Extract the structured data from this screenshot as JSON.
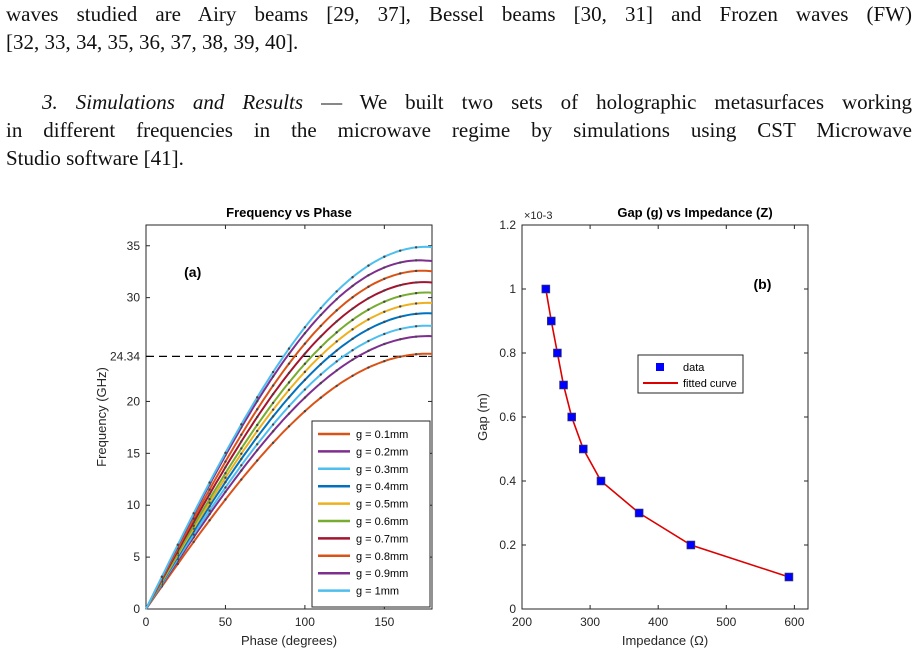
{
  "text": {
    "p1_line1": "waves studied are Airy beams [29, 37], Bessel beams [30, 31] and Frozen waves (FW)",
    "p1_line2": "[32, 33, 34, 35, 36, 37, 38, 39, 40].",
    "p2_heading": "3. Simulations and Results",
    "p2_line1_rest": " — We built two sets of holographic metasurfaces working",
    "p2_line2": "in different frequencies in the microwave regime by simulations using CST Microwave",
    "p2_line3": "Studio software [41]."
  },
  "chart_data": [
    {
      "type": "line",
      "title": "Frequency vs Phase",
      "panel_label": "(a)",
      "xlabel": "Phase (degrees)",
      "ylabel": "Frequency (GHz)",
      "xlim": [
        0,
        180
      ],
      "ylim": [
        0,
        37
      ],
      "xticks": [
        "0",
        "50",
        "100",
        "150"
      ],
      "yticks": [
        "0",
        "5",
        "10",
        "15",
        "20",
        "24.34",
        "30",
        "35"
      ],
      "reference_line": {
        "y": 24.34,
        "label": "24.34",
        "style": "dashed"
      },
      "legend_position": "bottom-right",
      "series": [
        {
          "name": "g = 0.1mm",
          "color": "#d95319",
          "fmax": 24.6,
          "phase_at_max": 178
        },
        {
          "name": "g = 0.2mm",
          "color": "#7e2f8e",
          "fmax": 26.3,
          "phase_at_max": 178
        },
        {
          "name": "g = 0.3mm",
          "color": "#4dbeee",
          "fmax": 27.3,
          "phase_at_max": 178
        },
        {
          "name": "g = 0.4mm",
          "color": "#0072bd",
          "fmax": 28.5,
          "phase_at_max": 178
        },
        {
          "name": "g = 0.5mm",
          "color": "#edb120",
          "fmax": 29.5,
          "phase_at_max": 178
        },
        {
          "name": "g = 0.6mm",
          "color": "#77ac30",
          "fmax": 30.5,
          "phase_at_max": 178
        },
        {
          "name": "g = 0.7mm",
          "color": "#a2142f",
          "fmax": 31.5,
          "phase_at_max": 176
        },
        {
          "name": "g = 0.8mm",
          "color": "#d95319",
          "fmax": 32.6,
          "phase_at_max": 175
        },
        {
          "name": "g = 0.9mm",
          "color": "#7e2f8e",
          "fmax": 33.6,
          "phase_at_max": 173
        },
        {
          "name": "g = 1mm",
          "color": "#4dbeee",
          "fmax": 34.9,
          "phase_at_max": 177
        }
      ]
    },
    {
      "type": "scatter",
      "title": "Gap (g) vs Impedance (Z)",
      "panel_label": "(b)",
      "xlabel": "Impedance (Ω)",
      "ylabel": "Gap (m)",
      "y_multiplier": "×10-3",
      "xlim": [
        200,
        620
      ],
      "ylim": [
        0,
        1.2
      ],
      "xticks": [
        "200",
        "300",
        "400",
        "500",
        "600"
      ],
      "yticks": [
        "0",
        "0.2",
        "0.4",
        "0.6",
        "0.8",
        "1",
        "1.2"
      ],
      "legend_position": "top-right",
      "series": [
        {
          "name": "data",
          "color": "#0000ff",
          "marker": "square",
          "x": [
            235,
            243,
            252,
            261,
            273,
            290,
            316,
            372,
            448,
            592
          ],
          "y": [
            1.0,
            0.9,
            0.8,
            0.7,
            0.6,
            0.5,
            0.4,
            0.3,
            0.2,
            0.1
          ]
        },
        {
          "name": "fitted curve",
          "color": "#dd0000",
          "marker": "line",
          "x": [
            235,
            243,
            252,
            261,
            273,
            290,
            316,
            372,
            448,
            592
          ],
          "y": [
            1.0,
            0.9,
            0.8,
            0.7,
            0.6,
            0.5,
            0.4,
            0.3,
            0.2,
            0.1
          ]
        }
      ]
    }
  ]
}
